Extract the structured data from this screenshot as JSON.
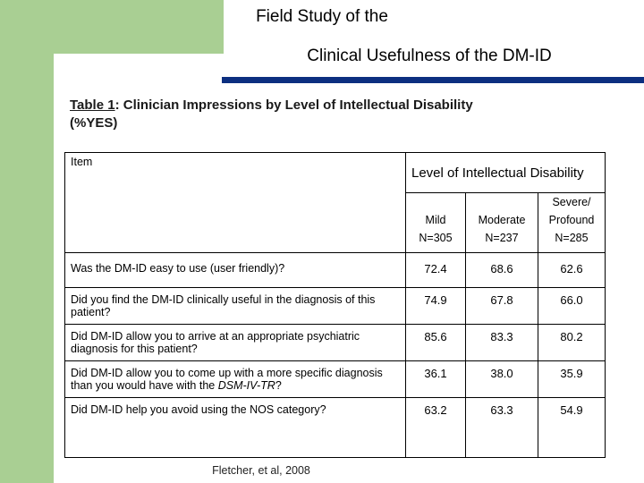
{
  "title": {
    "line1": "Field Study of the",
    "line2": "Clinical Usefulness of the DM-ID"
  },
  "subtitle": {
    "label": "Table 1",
    "text": ":  Clinician Impressions by Level of Intellectual Disability",
    "line2": "(%YES)"
  },
  "table": {
    "item_header": "Item",
    "level_header": "Level of Intellectual Disability",
    "columns": [
      {
        "name": "Mild",
        "n": "N=305"
      },
      {
        "name": "Moderate",
        "n": "N=237"
      },
      {
        "name": "Severe/",
        "name2": "Profound",
        "n": "N=285"
      }
    ],
    "rows": [
      {
        "question": "Was the DM-ID easy to use (user friendly)?",
        "values": [
          "72.4",
          "68.6",
          "62.6"
        ]
      },
      {
        "question": "Did you find the DM-ID clinically useful in the diagnosis of this patient?",
        "values": [
          "74.9",
          "67.8",
          "66.0"
        ]
      },
      {
        "question": "Did DM-ID allow you to arrive at an appropriate psychiatric diagnosis for this patient?",
        "values": [
          "85.6",
          "83.3",
          "80.2"
        ]
      },
      {
        "question_part1": "Did DM-ID allow you to come up with a more specific diagnosis than you would have with the ",
        "question_italic": "DSM-IV-TR",
        "question_part2": "?",
        "values": [
          "36.1",
          "38.0",
          "35.9"
        ]
      },
      {
        "question": "Did DM-ID help you avoid using the NOS category?",
        "values": [
          "63.2",
          "63.3",
          "54.9"
        ]
      }
    ]
  },
  "footer": "Fletcher, et al, 2008",
  "colors": {
    "accent_green": "#a9cf93",
    "accent_blue": "#0c2f80"
  }
}
